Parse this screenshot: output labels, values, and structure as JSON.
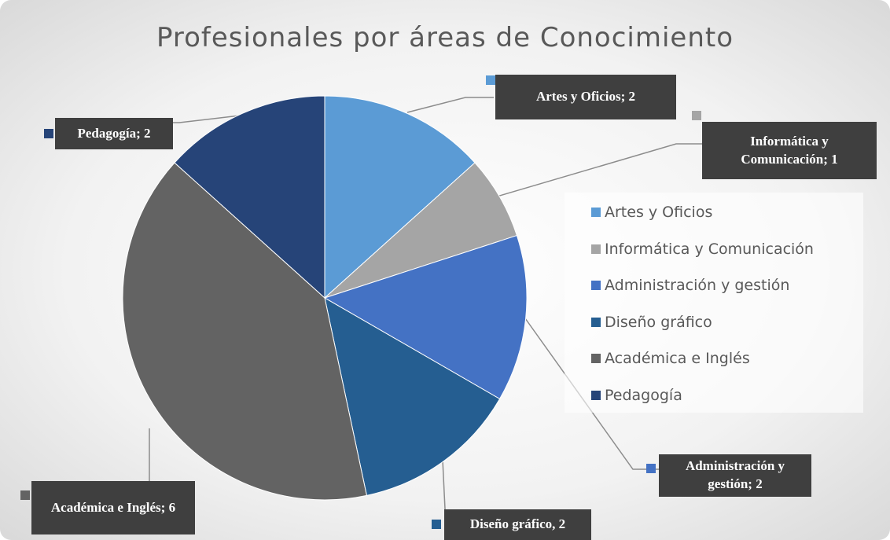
{
  "chart_data": {
    "type": "pie",
    "title": "Profesionales por áreas de Conocimiento",
    "categories": [
      "Artes y Oficios",
      "Informática y Comunicación",
      "Administración y gestión",
      "Diseño gráfico",
      "Académica e Inglés",
      "Pedagogía"
    ],
    "values": [
      2,
      1,
      2,
      2,
      6,
      2
    ],
    "value_labels": [
      "Artes y Oficios; 2",
      "Informática y Comunicación; 1",
      "Administración y gestión; 2",
      "Diseño gráfico, 2",
      "Académica e Inglés; 6",
      "Pedagogía; 2"
    ],
    "colors": [
      "#5b9bd5",
      "#a5a5a5",
      "#4472c4",
      "#255e91",
      "#636363",
      "#264478"
    ],
    "legend": "right"
  }
}
